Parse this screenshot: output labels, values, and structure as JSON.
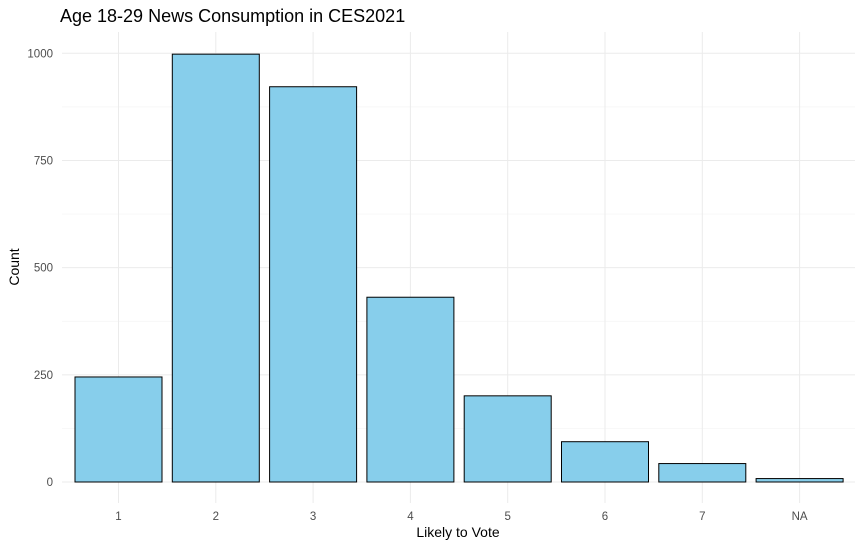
{
  "chart_data": {
    "type": "bar",
    "title": "Age 18-29 News Consumption in CES2021",
    "xlabel": "Likely to Vote",
    "ylabel": "Count",
    "categories": [
      "1",
      "2",
      "3",
      "4",
      "5",
      "6",
      "7",
      "NA"
    ],
    "values": [
      245,
      998,
      922,
      431,
      201,
      94,
      43,
      8
    ],
    "ylim": [
      0,
      1050
    ],
    "yticks": [
      0,
      250,
      500,
      750,
      1000
    ],
    "grid": true,
    "bar_color": "#87CEEB",
    "bar_outline": "#000000"
  }
}
